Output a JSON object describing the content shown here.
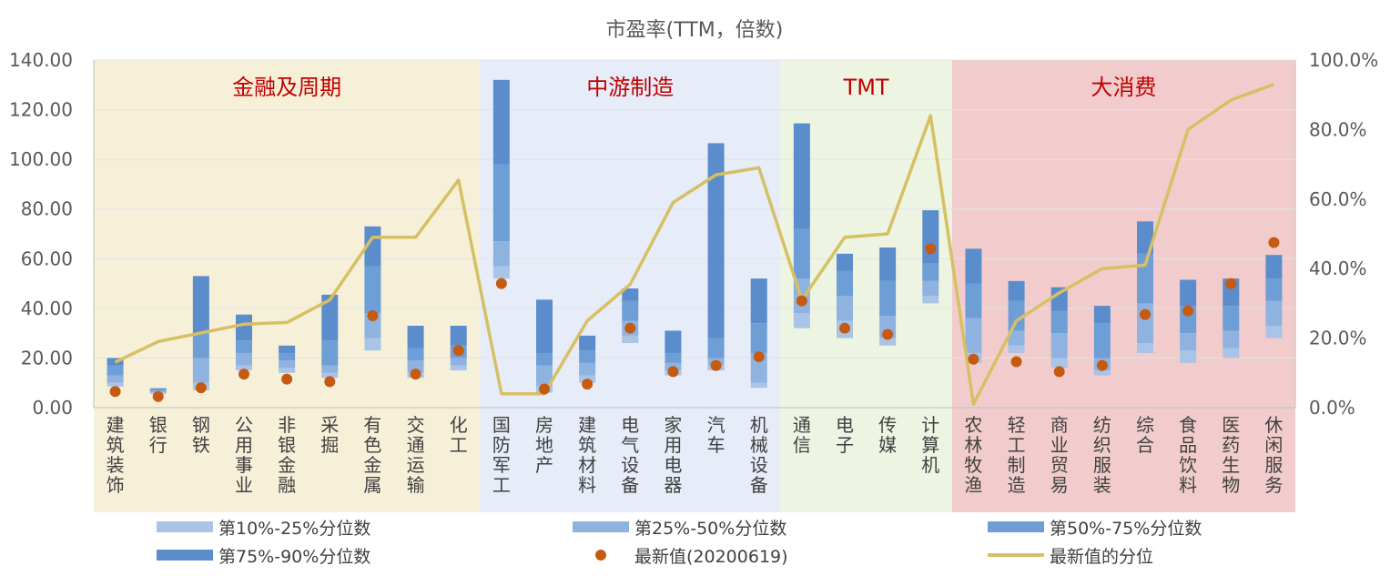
{
  "chart_data": {
    "type": "bar",
    "title": "市盈率(TTM，倍数)",
    "ylim_left": [
      0,
      140
    ],
    "ylim_right": [
      0,
      1
    ],
    "y_ticks_left": [
      "0.00",
      "20.00",
      "40.00",
      "60.00",
      "80.00",
      "100.00",
      "120.00",
      "140.00"
    ],
    "y_ticks_right": [
      "0.0%",
      "20.0%",
      "40.0%",
      "60.0%",
      "80.0%",
      "100.0%"
    ],
    "groups": [
      {
        "name": "金融及周期",
        "color": "#f7f0d9",
        "start": 0,
        "end": 8
      },
      {
        "name": "中游制造",
        "color": "#e6ecf8",
        "start": 9,
        "end": 15
      },
      {
        "name": "TMT",
        "color": "#edf5e2",
        "start": 16,
        "end": 19
      },
      {
        "name": "大消费",
        "color": "#f2cccc",
        "start": 20,
        "end": 27
      }
    ],
    "categories": [
      "建筑装饰",
      "银行",
      "钢铁",
      "公用事业",
      "非银金融",
      "采掘",
      "有色金属",
      "交通运输",
      "化工",
      "国防军工",
      "房地产",
      "建筑材料",
      "电气设备",
      "家用电器",
      "汽车",
      "机械设备",
      "通信",
      "电子",
      "传媒",
      "计算机",
      "农林牧渔",
      "轻工制造",
      "商业贸易",
      "纺织服装",
      "综合",
      "食品饮料",
      "医药生物",
      "休闲服务"
    ],
    "p10": [
      8.5,
      5.5,
      7,
      15,
      14,
      12,
      23,
      12,
      15,
      52,
      6,
      10,
      26,
      13,
      15,
      8,
      32,
      28,
      25,
      42,
      18,
      22,
      16,
      13,
      22,
      18,
      20,
      28
    ],
    "p25": [
      10,
      6.2,
      10,
      17,
      16,
      14,
      28,
      14,
      17,
      57,
      9,
      13,
      29,
      15,
      17,
      10,
      38,
      35,
      28,
      45,
      22,
      25,
      20,
      15,
      26,
      23,
      24,
      33
    ],
    "p50": [
      13,
      6.8,
      20,
      22,
      19,
      17,
      38,
      19,
      20,
      67,
      17,
      18,
      35,
      18,
      20,
      22,
      52,
      45,
      37,
      51,
      36,
      31,
      30,
      20,
      42,
      30,
      31,
      43
    ],
    "p75": [
      17,
      7.3,
      30,
      27,
      22,
      27,
      57,
      24,
      25,
      98,
      22,
      23,
      43,
      22,
      28,
      34,
      72,
      55,
      51,
      58,
      50,
      43,
      39,
      34,
      62,
      41,
      41,
      52
    ],
    "p90": [
      20,
      7.8,
      53,
      37.5,
      25,
      45.5,
      73,
      33,
      33,
      132,
      43.5,
      29,
      48,
      31,
      106.5,
      52,
      114.5,
      62,
      64.5,
      79.5,
      64,
      51,
      48.5,
      41,
      75,
      51.5,
      52,
      61.5
    ],
    "latest": [
      6.5,
      4.5,
      8,
      13.5,
      11.5,
      10.5,
      37,
      13.5,
      23,
      50,
      7.5,
      9.5,
      32,
      14.5,
      17,
      20.5,
      43,
      32,
      29.5,
      64,
      19.5,
      18.5,
      14.5,
      17,
      37.5,
      39,
      50,
      66.5
    ],
    "latest_percentile": [
      0.131,
      0.19,
      0.215,
      0.24,
      0.245,
      0.31,
      0.49,
      0.49,
      0.655,
      0.04,
      0.04,
      0.25,
      0.355,
      0.59,
      0.67,
      0.69,
      0.31,
      0.49,
      0.5,
      0.84,
      0.01,
      0.25,
      0.33,
      0.4,
      0.41,
      0.8,
      0.885,
      0.93
    ],
    "series_colors": {
      "p10_25": "#a9c4e6",
      "p25_50": "#8fb3e0",
      "p50_75": "#6e9ed6",
      "p75_90": "#5b8ccb",
      "latest": "#c55a11",
      "percentile_line": "#d6c064"
    },
    "legend": [
      "第10%-25%分位数",
      "第25%-50%分位数",
      "第50%-75%分位数",
      "第75%-90%分位数",
      "最新值(20200619)",
      "最新值的分位"
    ]
  }
}
